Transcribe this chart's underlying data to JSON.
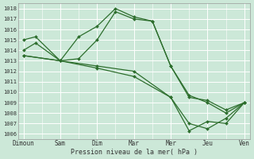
{
  "xlabel": "Pression niveau de la mer( hPa )",
  "background_color": "#cce8d8",
  "grid_color": "#ffffff",
  "line_color": "#2d6e2d",
  "ylim": [
    1005.5,
    1018.5
  ],
  "x_labels": [
    "Dimoun",
    "Sam",
    "Dim",
    "Mar",
    "Mer",
    "Jeu",
    "Ven"
  ],
  "x_positions": [
    0,
    1,
    2,
    3,
    4,
    5,
    6
  ],
  "series": [
    {
      "x": [
        0,
        0.33,
        1.0,
        1.5,
        2.0,
        2.5,
        3.0,
        3.5,
        4.0,
        4.5,
        5.0,
        5.5,
        6.0
      ],
      "y": [
        1015.0,
        1015.3,
        1013.0,
        1015.3,
        1016.3,
        1018.0,
        1017.2,
        1016.8,
        1012.5,
        1009.5,
        1009.2,
        1008.3,
        1009.0
      ]
    },
    {
      "x": [
        0,
        0.33,
        1.0,
        1.5,
        2.0,
        2.5,
        3.0,
        3.5,
        4.0,
        4.5,
        5.0,
        5.5,
        6.0
      ],
      "y": [
        1014.0,
        1014.7,
        1013.0,
        1013.2,
        1015.0,
        1017.7,
        1017.0,
        1016.8,
        1012.5,
        1009.7,
        1009.0,
        1008.0,
        1009.0
      ]
    },
    {
      "x": [
        0,
        1.0,
        2.0,
        3.0,
        4.0,
        4.5,
        5.0,
        5.5,
        6.0
      ],
      "y": [
        1013.5,
        1013.0,
        1012.5,
        1012.0,
        1009.5,
        1007.0,
        1006.5,
        1007.5,
        1009.0
      ]
    },
    {
      "x": [
        0,
        1.0,
        2.0,
        3.0,
        4.0,
        4.5,
        5.0,
        5.5,
        6.0
      ],
      "y": [
        1013.5,
        1013.0,
        1012.3,
        1011.5,
        1009.5,
        1006.3,
        1007.2,
        1007.0,
        1009.0
      ]
    }
  ]
}
